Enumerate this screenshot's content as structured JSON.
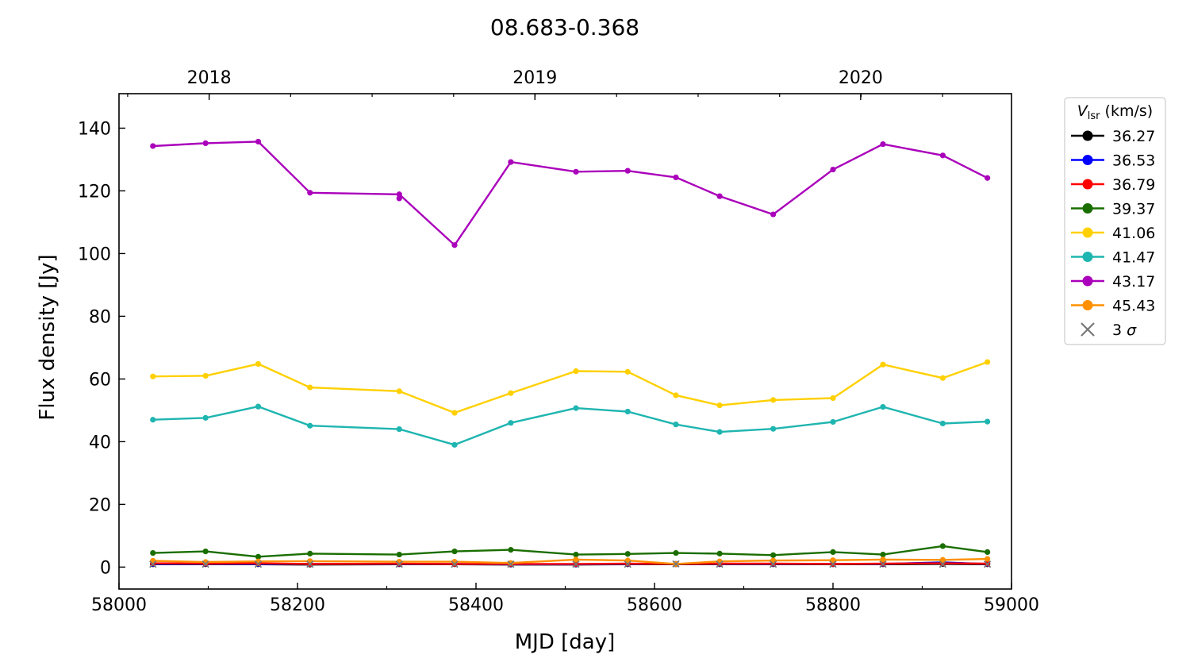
{
  "chart_data": {
    "type": "line",
    "title": "08.683-0.368",
    "xlabel": "MJD [day]",
    "ylabel": "Flux density [Jy]",
    "xlim": [
      58000,
      59000
    ],
    "ylim": [
      -7,
      151
    ],
    "xticks": [
      58000,
      58200,
      58400,
      58600,
      58800,
      59000
    ],
    "yticks": [
      0,
      20,
      40,
      60,
      80,
      100,
      120,
      140
    ],
    "top_axis": {
      "ticks": [
        {
          "label": "2018",
          "mjd": 58101
        },
        {
          "label": "2019",
          "mjd": 58466
        },
        {
          "label": "2020",
          "mjd": 58831
        }
      ]
    },
    "grid": false,
    "legend": {
      "placement": "outside-right",
      "title_main": "V",
      "title_sub": "lsr",
      "title_rest": " (km/s)",
      "sigma_label": "3 σ"
    },
    "x": [
      58038,
      58097,
      58156,
      58214,
      58314,
      58376,
      58439,
      58512,
      58570,
      58624,
      58673,
      58733,
      58800,
      58856,
      58923,
      58973
    ],
    "series": [
      {
        "name": "36.27",
        "color": "#000000",
        "values": [
          0.9,
          0.9,
          0.9,
          0.8,
          0.9,
          0.9,
          0.8,
          0.8,
          0.9,
          0.9,
          0.9,
          0.9,
          0.9,
          0.9,
          1.0,
          0.9
        ]
      },
      {
        "name": "36.53",
        "color": "#0000ff",
        "values": [
          1.0,
          1.0,
          1.0,
          1.0,
          1.0,
          1.0,
          0.9,
          0.9,
          1.0,
          1.0,
          1.0,
          1.0,
          1.0,
          1.0,
          1.5,
          1.0
        ]
      },
      {
        "name": "36.79",
        "color": "#ff0000",
        "values": [
          1.2,
          1.1,
          1.2,
          1.0,
          1.1,
          1.0,
          1.0,
          1.0,
          1.1,
          1.0,
          1.1,
          1.1,
          1.0,
          1.1,
          1.2,
          1.1
        ]
      },
      {
        "name": "39.37",
        "color": "#1a6e00",
        "values": [
          4.5,
          5.0,
          3.3,
          4.3,
          4.0,
          5.0,
          5.5,
          4.0,
          4.2,
          4.5,
          4.3,
          3.8,
          4.8,
          4.0,
          6.7,
          4.8
        ]
      },
      {
        "name": "41.06",
        "color": "#ffd000",
        "values": [
          60.8,
          61.0,
          64.8,
          57.3,
          56.1,
          49.2,
          55.5,
          62.5,
          62.3,
          54.8,
          51.6,
          53.3,
          53.9,
          64.6,
          60.3,
          65.4
        ]
      },
      {
        "name": "41.47",
        "color": "#1fb5b0",
        "values": [
          47.0,
          47.6,
          51.2,
          45.1,
          44.0,
          39.0,
          46.0,
          50.7,
          49.6,
          45.5,
          43.1,
          44.1,
          46.3,
          51.1,
          45.8,
          46.4
        ]
      },
      {
        "name": "43.17",
        "color": "#aa00bb",
        "values": [
          134.3,
          135.2,
          135.7,
          119.4,
          118.9,
          102.7,
          129.2,
          126.1,
          126.4,
          124.3,
          118.3,
          112.5,
          126.8,
          134.9,
          131.3,
          124.1
        ]
      },
      {
        "name": "45.43",
        "color": "#ff9000",
        "values": [
          2.0,
          1.6,
          1.8,
          1.9,
          1.7,
          1.7,
          1.3,
          2.4,
          2.1,
          1.0,
          1.8,
          2.1,
          2.2,
          2.4,
          2.3,
          2.6
        ]
      }
    ],
    "extra_points": [
      {
        "series": "43.17",
        "x": 58314,
        "y": 117.6
      }
    ],
    "sigma3": {
      "marker": "x",
      "color": "#777777",
      "values": [
        0.9,
        0.9,
        0.9,
        0.9,
        0.9,
        0.9,
        0.9,
        0.9,
        0.9,
        1.0,
        0.9,
        0.9,
        0.9,
        0.9,
        0.9,
        0.9
      ]
    }
  }
}
